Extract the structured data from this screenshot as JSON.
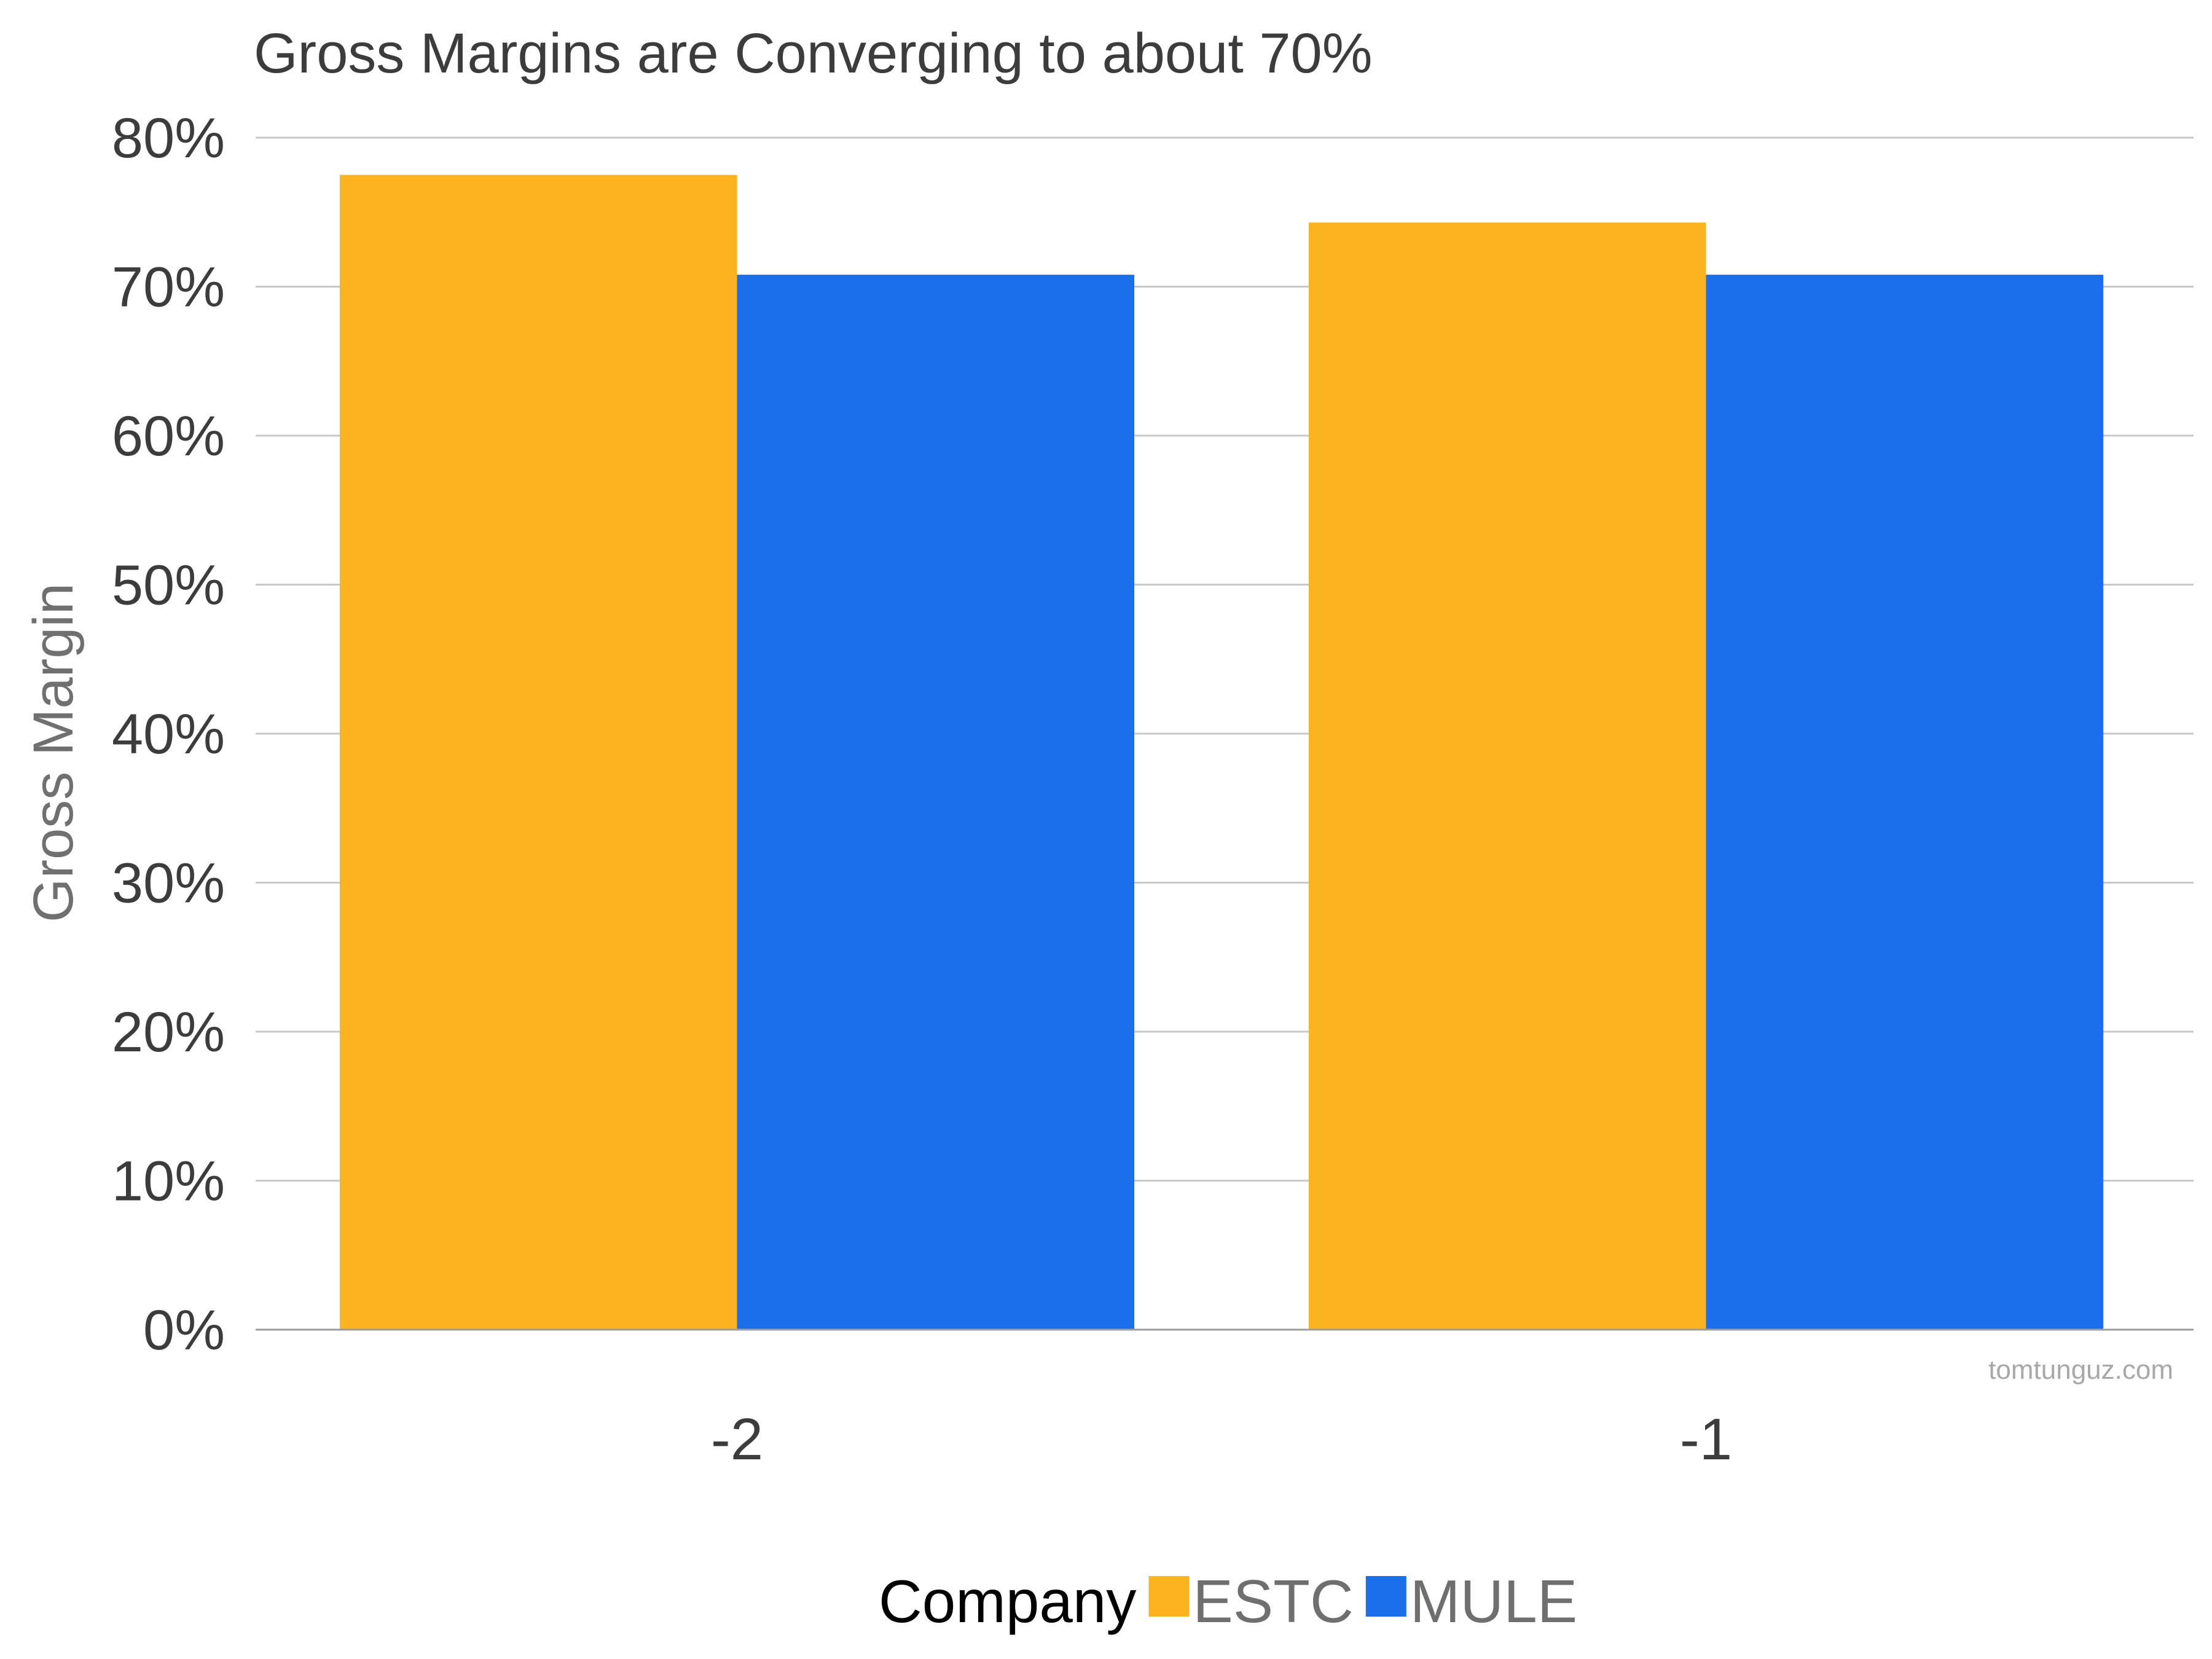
{
  "chart_data": {
    "type": "bar",
    "title": "Gross Margins are Converging to about 70%",
    "xlabel": "",
    "ylabel": "Gross Margin",
    "categories": [
      "-2",
      "-1"
    ],
    "series": [
      {
        "name": "ESTC",
        "color": "#FBB41F",
        "values": [
          77.5,
          74.3
        ]
      },
      {
        "name": "MULE",
        "color": "#1C6FEA",
        "values": [
          70.8,
          70.8
        ]
      }
    ],
    "ylim": [
      0,
      80
    ],
    "yticks": [
      0,
      10,
      20,
      30,
      40,
      50,
      60,
      70,
      80
    ],
    "ytick_labels": [
      "0%",
      "10%",
      "20%",
      "30%",
      "40%",
      "50%",
      "60%",
      "70%",
      "80%"
    ],
    "grid": true,
    "legend": {
      "title": "Company",
      "placement": "bottom-center"
    },
    "watermark": "tomtunguz.com"
  }
}
